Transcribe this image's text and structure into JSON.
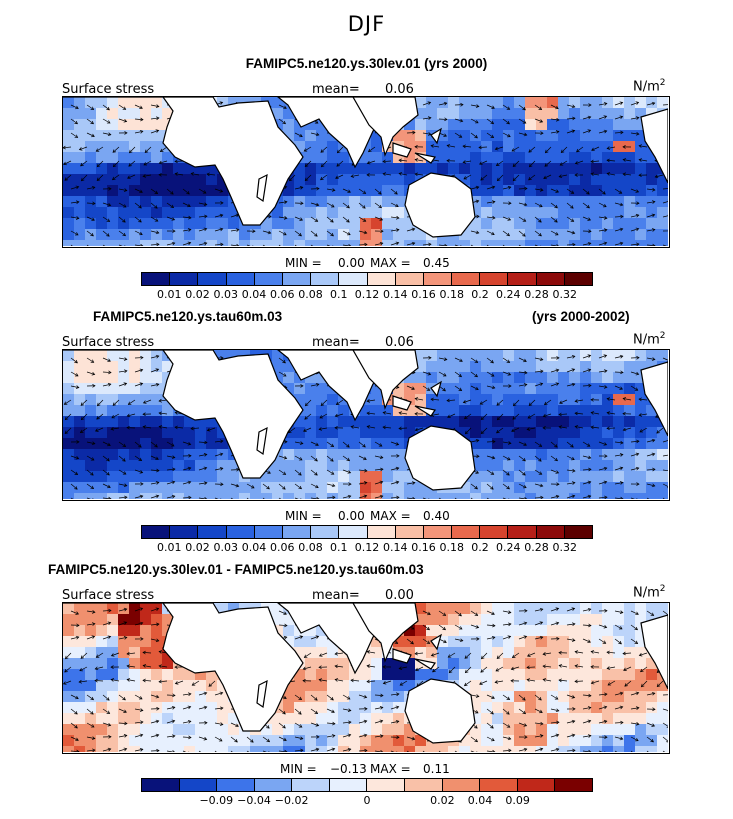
{
  "figure_title": "DJF",
  "units_base": "N/m",
  "units_exp": "2",
  "chart_data": [
    {
      "type": "heatmap",
      "title": "FAMIPC5.ne120.ys.30lev.01 (yrs 2000)",
      "title_right": "",
      "variable": "Surface stress",
      "mean_label": "mean=",
      "mean": "0.06",
      "min_label": "MIN =",
      "min": "0.00",
      "max_label": "MAX =",
      "max": "0.45",
      "colorbar_levels": [
        "0.01",
        "0.02",
        "0.03",
        "0.04",
        "0.06",
        "0.08",
        "0.1",
        "0.12",
        "0.14",
        "0.16",
        "0.18",
        "0.2",
        "0.24",
        "0.28",
        "0.32"
      ]
    },
    {
      "type": "heatmap",
      "title": "FAMIPC5.ne120.ys.tau60m.03",
      "title_right": "(yrs 2000-2002)",
      "variable": "Surface stress",
      "mean_label": "mean=",
      "mean": "0.06",
      "min_label": "MIN =",
      "min": "0.00",
      "max_label": "MAX =",
      "max": "0.40",
      "colorbar_levels": [
        "0.01",
        "0.02",
        "0.03",
        "0.04",
        "0.06",
        "0.08",
        "0.1",
        "0.12",
        "0.14",
        "0.16",
        "0.18",
        "0.2",
        "0.24",
        "0.28",
        "0.32"
      ]
    },
    {
      "type": "heatmap",
      "title": "FAMIPC5.ne120.ys.30lev.01 - FAMIPC5.ne120.ys.tau60m.03",
      "title_right": "",
      "variable": "Surface stress",
      "mean_label": "mean=",
      "mean": "0.00",
      "min_label": "MIN =",
      "min": "−0.13",
      "max_label": "MAX =",
      "max": "0.11",
      "colorbar_levels": [
        "−0.09",
        "−0.04",
        "−0.02",
        "0",
        "0.02",
        "0.04",
        "0.09"
      ]
    }
  ],
  "colors": {
    "abs_scale": [
      "#08127a",
      "#0b2aa6",
      "#1446c8",
      "#2a62e0",
      "#4a80ec",
      "#7aa6f2",
      "#a9c8f8",
      "#dce9fc",
      "#fde3d6",
      "#f9bfa6",
      "#f3957a",
      "#e8694d",
      "#d6442e",
      "#b51f18",
      "#8c0a0a",
      "#5c0000"
    ],
    "diff_scale": [
      "#08127a",
      "#1446c8",
      "#3d74ea",
      "#7aa6f2",
      "#bcd4fa",
      "#e7f0fe",
      "#fde7dc",
      "#f9c1a8",
      "#f0906e",
      "#e25a3a",
      "#c0281a",
      "#7a0000"
    ]
  }
}
